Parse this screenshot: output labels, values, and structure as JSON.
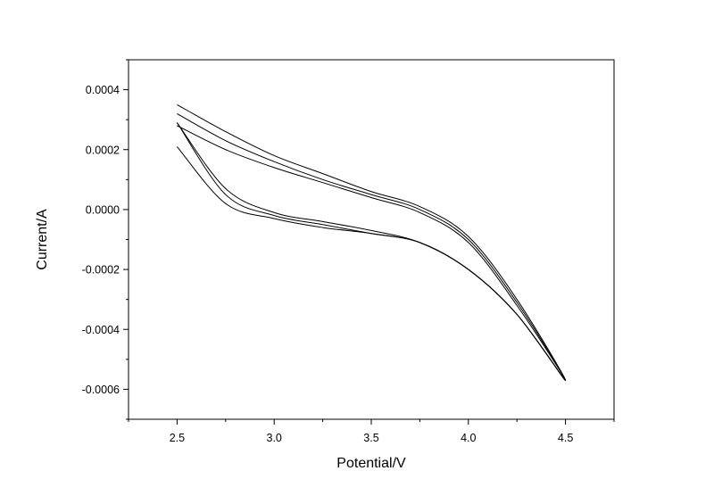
{
  "chart_data": {
    "type": "line",
    "title": "",
    "xlabel": "Potential/V",
    "ylabel": "Current/A",
    "xlim": [
      2.25,
      4.75
    ],
    "ylim": [
      -0.0007,
      0.0005
    ],
    "x_ticks": [
      2.5,
      3.0,
      3.5,
      4.0,
      4.5
    ],
    "x_tick_labels": [
      "2.5",
      "3.0",
      "3.5",
      "4.0",
      "4.5"
    ],
    "y_ticks": [
      0.0004,
      0.0002,
      0.0,
      -0.0002,
      -0.0004,
      -0.0006
    ],
    "y_tick_labels": [
      "0.0004",
      "0.0002",
      "0.0000",
      "-0.0002",
      "-0.0004",
      "-0.0006"
    ],
    "grid": false,
    "line_color": "#000000",
    "series": [
      {
        "x": [
          2.5,
          2.75,
          3.0,
          3.25,
          3.5,
          3.75,
          4.0,
          4.25,
          4.5,
          4.25,
          4.0,
          3.75,
          3.5,
          3.25,
          3.0,
          2.75,
          2.5
        ],
        "y": [
          0.00021,
          2e-05,
          -3e-05,
          -6e-05,
          -8e-05,
          -0.00011,
          -0.0002,
          -0.00035,
          -0.00057,
          -0.0003,
          -9e-05,
          1e-05,
          6e-05,
          0.00012,
          0.00018,
          0.00026,
          0.00035
        ]
      },
      {
        "x": [
          2.5,
          2.75,
          3.0,
          3.25,
          3.5,
          3.75,
          4.0,
          4.25,
          4.5,
          4.25,
          4.0,
          3.75,
          3.5,
          3.25,
          3.0,
          2.75,
          2.5
        ],
        "y": [
          0.00029,
          5e-05,
          -2e-05,
          -5e-05,
          -8e-05,
          -0.00011,
          -0.0002,
          -0.00035,
          -0.00057,
          -0.00031,
          -0.0001,
          0.0,
          5e-05,
          0.0001,
          0.00016,
          0.00023,
          0.00032
        ]
      },
      {
        "x": [
          2.5,
          2.75,
          3.0,
          3.25,
          3.5,
          3.75,
          4.0,
          4.25,
          4.5,
          4.25,
          4.0,
          3.75,
          3.5,
          3.25,
          3.0,
          2.75,
          2.5
        ],
        "y": [
          0.00029,
          7e-05,
          -1e-05,
          -4e-05,
          -7e-05,
          -0.00011,
          -0.0002,
          -0.00035,
          -0.00057,
          -0.00032,
          -0.00011,
          -1e-05,
          4e-05,
          9e-05,
          0.00014,
          0.0002,
          0.00028
        ]
      }
    ]
  }
}
